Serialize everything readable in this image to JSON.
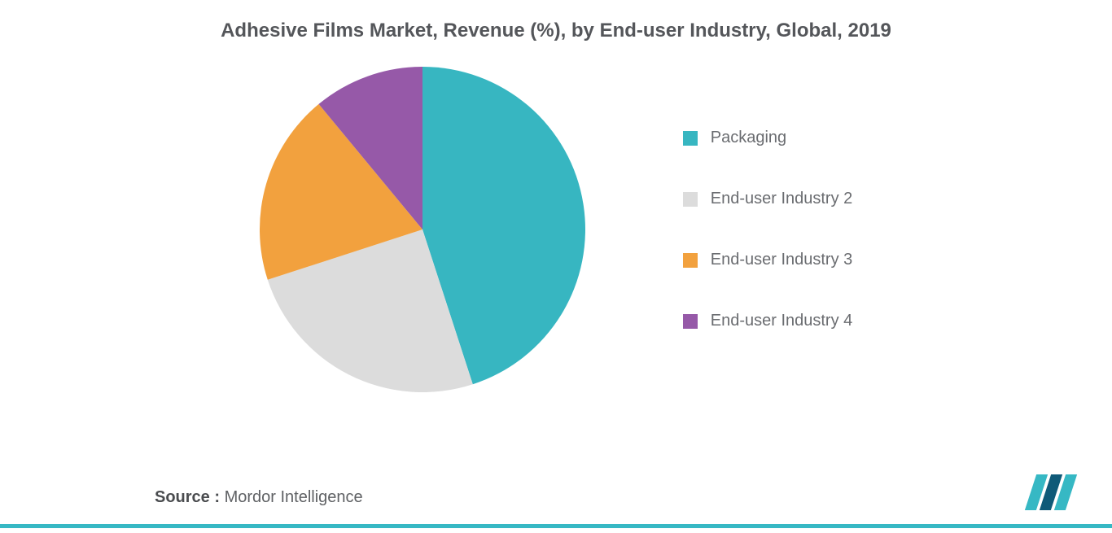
{
  "chart": {
    "type": "pie",
    "title": "Adhesive Films Market, Revenue (%), by End-user Industry, Global, 2019",
    "title_fontsize": 24,
    "title_color": "#54565a",
    "background_color": "#ffffff",
    "radius": 200,
    "slices": [
      {
        "label": "Packaging",
        "value": 45,
        "color": "#37b6c1"
      },
      {
        "label": "End-user Industry 2",
        "value": 25,
        "color": "#dcdcdc"
      },
      {
        "label": "End-user Industry 3",
        "value": 19,
        "color": "#f2a13e"
      },
      {
        "label": "End-user Industry 4",
        "value": 11,
        "color": "#9659a8"
      }
    ],
    "legend": {
      "position": "right",
      "swatch_size": 18,
      "label_fontsize": 20,
      "label_color": "#6a6c70",
      "gap": 52
    }
  },
  "source": {
    "prefix": "Source : ",
    "text": "Mordor Intelligence",
    "fontsize": 20,
    "color": "#5f6164"
  },
  "brand": {
    "accent_color": "#36b8c4",
    "dark_color": "#0f5a78"
  }
}
